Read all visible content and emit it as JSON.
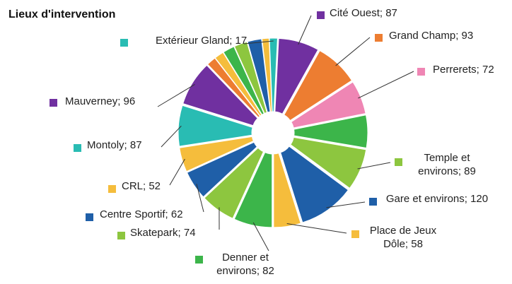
{
  "chart_data": {
    "type": "pie",
    "title": "Lieux d'intervention",
    "values": [
      87,
      93,
      72,
      70,
      89,
      120,
      58,
      82,
      74,
      62,
      52,
      87,
      96,
      20,
      20,
      25,
      28,
      30,
      15,
      17
    ],
    "value_labels": [
      "Cité Ouest; 87",
      "Grand Champ; 93",
      "Perrerets; 72",
      null,
      "Temple et environs; 89",
      "Gare et environs; 120",
      "Place de Jeux Dôle; 58",
      "Denner et environs; 82",
      "Skatepark; 74",
      "Centre Sportif; 62",
      "CRL; 52",
      "Montoly; 87",
      "Mauverney; 96",
      null,
      null,
      null,
      null,
      null,
      null,
      "Extérieur Gland; 17"
    ],
    "colors": [
      "#7030a0",
      "#ed7d31",
      "#ef86b4",
      "#3cb54a",
      "#8dc63f",
      "#1f5fa8",
      "#f5bd3c",
      "#3cb54a",
      "#8dc63f",
      "#1f5fa8",
      "#f5bd3c",
      "#29bcb3",
      "#7030a0",
      "#ed7d31",
      "#f5bd3c",
      "#3cb54a",
      "#8dc63f",
      "#1f5fa8",
      "#f5bd3c",
      "#29bcb3"
    ]
  }
}
